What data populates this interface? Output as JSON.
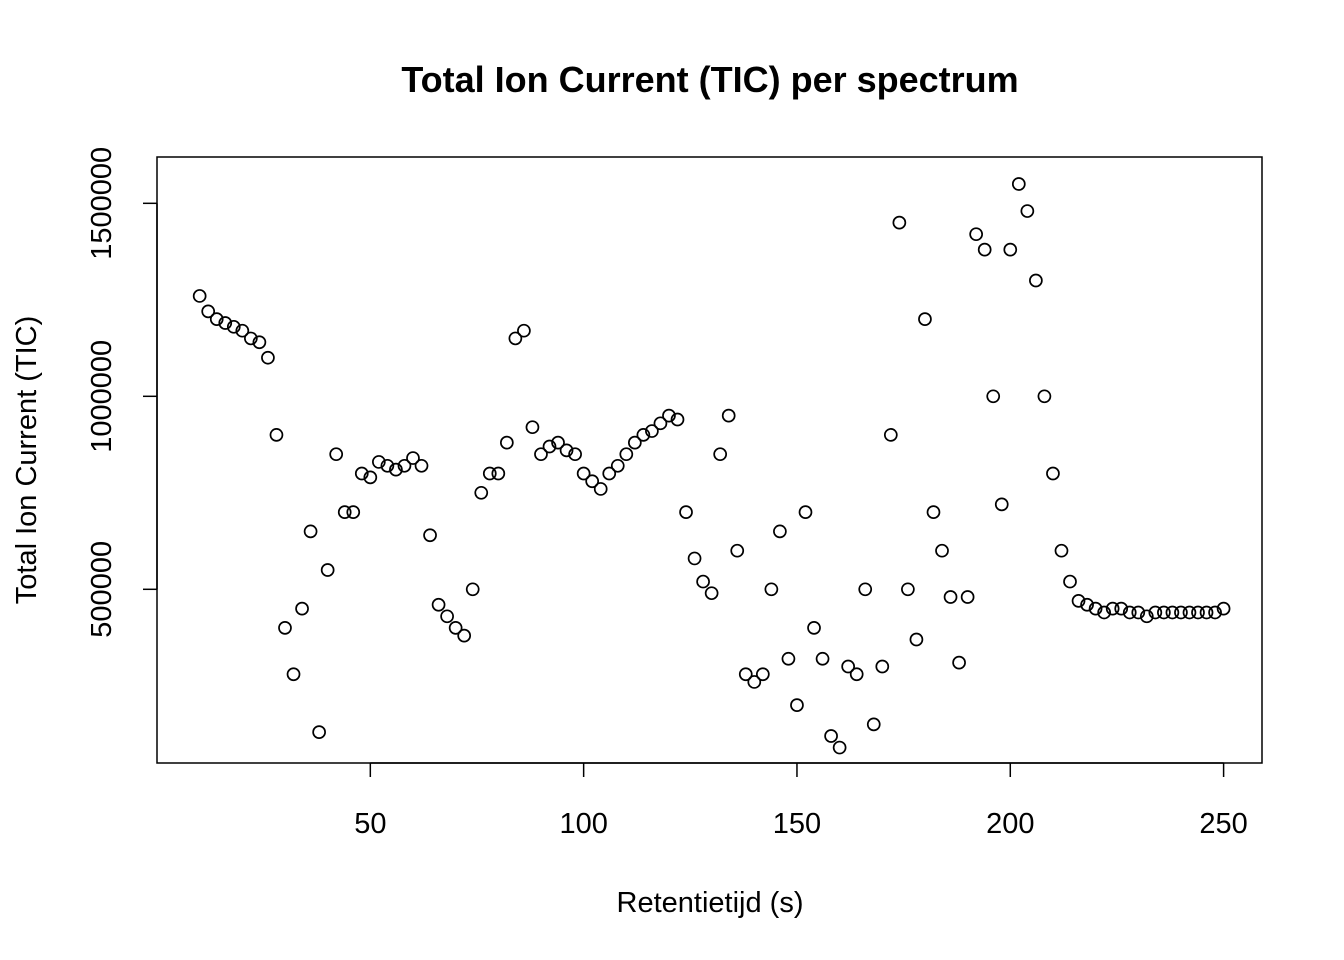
{
  "chart_data": {
    "type": "scatter",
    "title": "Total Ion Current (TIC) per spectrum",
    "xlabel": "Retentietijd (s)",
    "ylabel": "Total Ion Current (TIC)",
    "xlim": [
      0,
      259
    ],
    "ylim": [
      50000,
      1620000
    ],
    "xticks": [
      50,
      100,
      150,
      200,
      250
    ],
    "xtick_labels": [
      "50",
      "100",
      "150",
      "200",
      "250"
    ],
    "yticks": [
      500000,
      1000000,
      1500000
    ],
    "ytick_labels": [
      "500000",
      "1000000",
      "1500000"
    ],
    "grid": false,
    "legend": "none",
    "marker": "open-circle",
    "marker_color": "#000000",
    "series": [
      {
        "x": [
          10,
          12,
          14,
          16,
          18,
          20,
          22,
          24,
          26,
          28,
          30,
          32,
          34,
          36,
          38,
          40,
          42,
          44,
          46,
          48,
          50,
          52,
          54,
          56,
          58,
          60,
          62,
          64,
          66,
          68,
          70,
          72,
          74,
          76,
          78,
          80,
          82,
          84,
          86,
          88,
          90,
          92,
          94,
          96,
          98,
          100,
          102,
          104,
          106,
          108,
          110,
          112,
          114,
          116,
          118,
          120,
          122,
          124,
          126,
          128,
          130,
          132,
          134,
          136,
          138,
          140,
          142,
          144,
          146,
          148,
          150,
          152,
          154,
          156,
          158,
          160,
          162,
          164,
          166,
          168,
          170,
          172,
          174,
          176,
          178,
          180,
          182,
          184,
          186,
          188,
          190,
          192,
          194,
          196,
          198,
          200,
          202,
          204,
          206,
          208,
          210,
          212,
          214,
          216,
          218,
          220,
          222,
          224,
          226,
          228,
          230,
          232,
          234,
          236,
          238,
          240,
          242,
          244,
          246,
          248,
          250
        ],
        "y": [
          1260000,
          1220000,
          1200000,
          1190000,
          1180000,
          1170000,
          1150000,
          1140000,
          1100000,
          900000,
          400000,
          280000,
          450000,
          650000,
          130000,
          550000,
          850000,
          700000,
          700000,
          800000,
          790000,
          830000,
          820000,
          810000,
          820000,
          840000,
          820000,
          640000,
          460000,
          430000,
          400000,
          380000,
          500000,
          750000,
          800000,
          800000,
          880000,
          1150000,
          1170000,
          920000,
          850000,
          870000,
          880000,
          860000,
          850000,
          800000,
          780000,
          760000,
          800000,
          820000,
          850000,
          880000,
          900000,
          910000,
          930000,
          950000,
          940000,
          700000,
          580000,
          520000,
          490000,
          850000,
          950000,
          600000,
          280000,
          260000,
          280000,
          500000,
          650000,
          320000,
          200000,
          700000,
          400000,
          320000,
          120000,
          90000,
          300000,
          280000,
          500000,
          150000,
          300000,
          900000,
          1450000,
          500000,
          370000,
          1200000,
          700000,
          600000,
          480000,
          310000,
          480000,
          1420000,
          1380000,
          1000000,
          720000,
          1380000,
          1550000,
          1480000,
          1300000,
          1000000,
          800000,
          600000,
          520000,
          470000,
          460000,
          450000,
          440000,
          450000,
          450000,
          440000,
          440000,
          430000,
          440000,
          440000,
          440000,
          440000,
          440000,
          440000,
          440000,
          440000,
          450000
        ]
      }
    ]
  }
}
